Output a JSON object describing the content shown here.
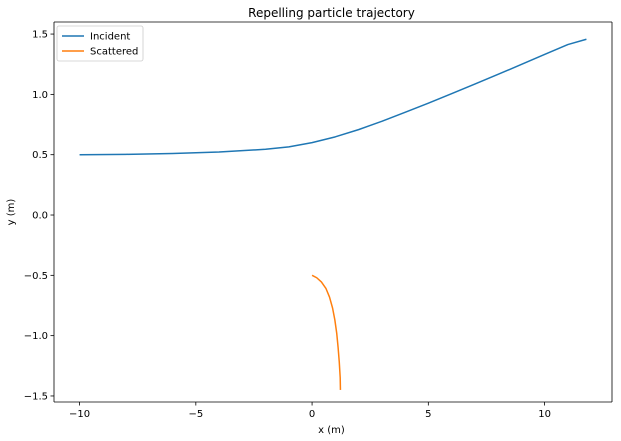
{
  "chart_data": {
    "type": "line",
    "title": "Repelling particle trajectory",
    "xlabel": "x (m)",
    "ylabel": "y (m)",
    "xlim": [
      -11.1,
      12.9
    ],
    "ylim": [
      -1.55,
      1.6
    ],
    "xticks": [
      -10,
      -5,
      0,
      5,
      10
    ],
    "xtick_labels": [
      "−10",
      "−5",
      "0",
      "5",
      "10"
    ],
    "yticks": [
      -1.5,
      -1.0,
      -0.5,
      0.0,
      0.5,
      1.0,
      1.5
    ],
    "ytick_labels": [
      "−1.5",
      "−1.0",
      "−0.5",
      "0.0",
      "0.5",
      "1.0",
      "1.5"
    ],
    "grid": false,
    "legend_position": "top-left",
    "series": [
      {
        "name": "Incident",
        "color": "#1f77b4",
        "x": [
          -10,
          -8,
          -6,
          -4,
          -2,
          -1,
          0,
          1,
          2,
          3,
          4,
          5,
          6,
          7,
          8,
          9,
          10,
          11,
          11.8
        ],
        "y": [
          0.5,
          0.503,
          0.51,
          0.522,
          0.545,
          0.565,
          0.6,
          0.648,
          0.708,
          0.777,
          0.851,
          0.927,
          1.006,
          1.086,
          1.166,
          1.248,
          1.331,
          1.413,
          1.457
        ]
      },
      {
        "name": "Scattered",
        "color": "#ff7f0e",
        "x": [
          0.0,
          0.2,
          0.4,
          0.6,
          0.75,
          0.88,
          0.98,
          1.06,
          1.12,
          1.17,
          1.21,
          1.22
        ],
        "y": [
          -0.5,
          -0.52,
          -0.555,
          -0.61,
          -0.68,
          -0.77,
          -0.87,
          -0.98,
          -1.1,
          -1.22,
          -1.35,
          -1.45
        ]
      }
    ]
  }
}
